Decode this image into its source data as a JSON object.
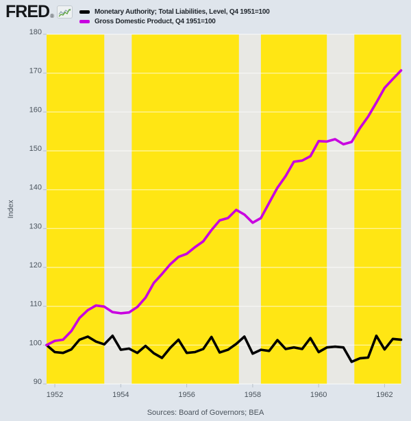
{
  "header": {
    "logo_text": "FRED",
    "logo_reg": "®",
    "legend": [
      {
        "label": "Monetary Authority; Total Liabilities, Level, Q4 1951=100",
        "color": "#000000"
      },
      {
        "label": "Gross Domestic Product, Q4 1951=100",
        "color": "#c800e0"
      }
    ]
  },
  "footer": {
    "sources": "Sources: Board of Governors; BEA"
  },
  "chart_data": {
    "type": "line",
    "title": "",
    "xlabel": "",
    "ylabel": "Index",
    "x_start": 1951.75,
    "x_step": 0.25,
    "xlim": [
      1951.75,
      1962.5
    ],
    "ylim": [
      90,
      180
    ],
    "yticks": [
      90,
      100,
      110,
      120,
      130,
      140,
      150,
      160,
      170,
      180
    ],
    "xticks": [
      1952,
      1954,
      1956,
      1958,
      1960,
      1962
    ],
    "grid": "horizontal-white",
    "legend_position": "top-left-header",
    "page_bg": "#dfe5ec",
    "plot_bg": "#ffe614",
    "recession_band_color": "#e8e8e4",
    "recession_bands": [
      [
        1953.5,
        1954.333
      ],
      [
        1957.583,
        1958.25
      ],
      [
        1960.25,
        1961.083
      ]
    ],
    "series": [
      {
        "name": "Monetary Authority; Total Liabilities, Level, Q4 1951=100",
        "color": "#000000",
        "values": [
          100.0,
          98.2,
          98.0,
          98.9,
          101.4,
          102.2,
          100.9,
          100.2,
          102.4,
          98.8,
          99.1,
          98.0,
          99.8,
          97.9,
          96.7,
          99.3,
          101.4,
          98.0,
          98.2,
          99.0,
          102.1,
          98.1,
          98.8,
          100.3,
          102.2,
          97.8,
          98.8,
          98.5,
          101.3,
          99.0,
          99.4,
          99.0,
          101.8,
          98.2,
          99.4,
          99.6,
          99.4,
          95.7,
          96.6,
          96.8,
          102.4,
          98.9,
          101.6,
          101.4
        ]
      },
      {
        "name": "Gross Domestic Product, Q4 1951=100",
        "color": "#c800e0",
        "values": [
          100.0,
          101.1,
          101.4,
          103.6,
          107.0,
          109.0,
          110.2,
          109.9,
          108.5,
          108.2,
          108.4,
          109.8,
          112.2,
          116.0,
          118.3,
          120.8,
          122.7,
          123.5,
          125.2,
          126.7,
          129.6,
          132.1,
          132.7,
          134.8,
          133.6,
          131.5,
          132.7,
          136.6,
          140.5,
          143.5,
          147.2,
          147.5,
          148.6,
          152.5,
          152.4,
          153.0,
          151.7,
          152.3,
          155.8,
          158.8,
          162.4,
          166.2,
          168.5,
          170.7
        ]
      }
    ]
  }
}
